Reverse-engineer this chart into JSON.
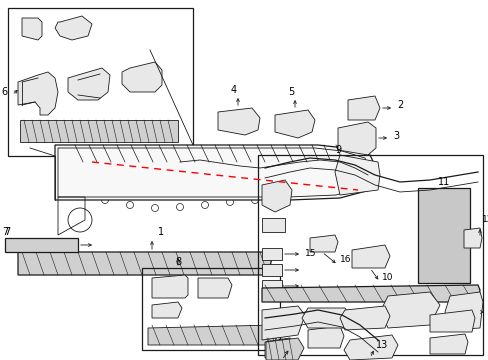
{
  "bg_color": "#ffffff",
  "line_color": "#1a1a1a",
  "red_dashed_color": "#ff0000",
  "gray_color": "#c8c8c8",
  "light_gray": "#e8e8e8",
  "mid_gray": "#d0d0d0",
  "figsize": [
    4.89,
    3.6
  ],
  "dpi": 100,
  "xlim": [
    0,
    489
  ],
  "ylim": [
    0,
    360
  ]
}
